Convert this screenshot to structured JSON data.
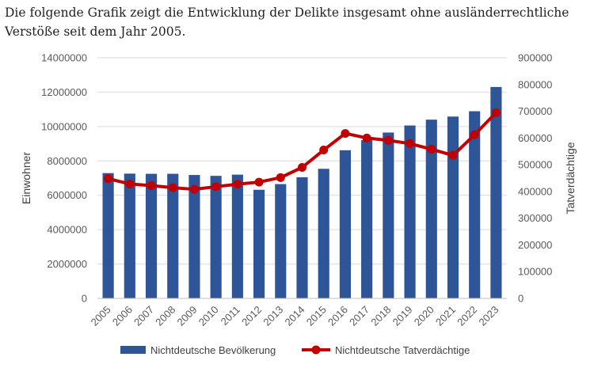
{
  "intro_text": "Die folgende Grafik zeigt die Entwicklung der Delikte insgesamt ohne ausländerrechtliche Verstöße seit dem Jahr 2005.",
  "chart_data": {
    "type": "bar+line",
    "categories": [
      "2005",
      "2006",
      "2007",
      "2008",
      "2009",
      "2010",
      "2011",
      "2012",
      "2013",
      "2014",
      "2015",
      "2016",
      "2017",
      "2018",
      "2019",
      "2020",
      "2021",
      "2022",
      "2023"
    ],
    "series": [
      {
        "name": "Nichtdeutsche Bevölkerung",
        "type": "bar",
        "axis": "left",
        "color": "#2e5597",
        "values": [
          7290000,
          7260000,
          7250000,
          7250000,
          7180000,
          7130000,
          7200000,
          6320000,
          6650000,
          7050000,
          7540000,
          8620000,
          9210000,
          9650000,
          10060000,
          10400000,
          10580000,
          10890000,
          12300000
        ]
      },
      {
        "name": "Nichtdeutsche Tatverdächtige",
        "type": "line",
        "axis": "right",
        "color": "#c00000",
        "values": [
          448000,
          428000,
          422000,
          414000,
          408000,
          418000,
          427000,
          435000,
          452000,
          490000,
          555000,
          617000,
          600000,
          591000,
          579000,
          558000,
          535000,
          612000,
          695000
        ]
      }
    ],
    "ylabel": "Einwohner",
    "y2label": "Tatverdächtige",
    "ylim": [
      0,
      14000000
    ],
    "y2lim": [
      0,
      900000
    ],
    "yticks": [
      "0",
      "2000000",
      "4000000",
      "6000000",
      "8000000",
      "10000000",
      "12000000",
      "14000000"
    ],
    "y2ticks": [
      "0",
      "100000",
      "200000",
      "300000",
      "400000",
      "500000",
      "600000",
      "700000",
      "800000",
      "900000"
    ],
    "grid": true,
    "legend_position": "bottom"
  }
}
